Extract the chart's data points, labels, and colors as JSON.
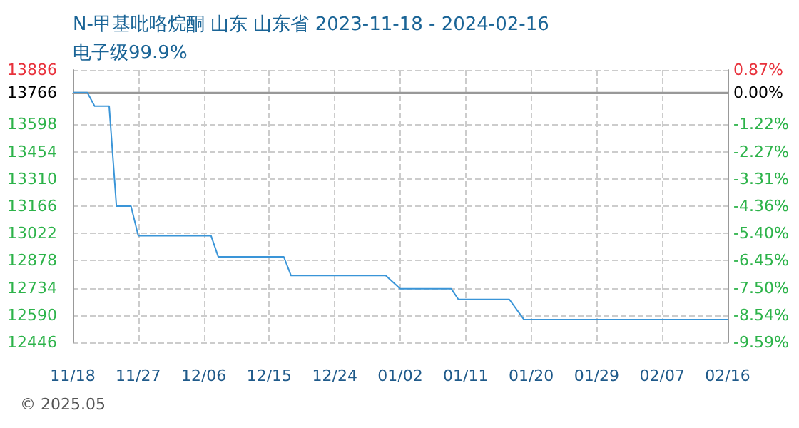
{
  "chart_data": {
    "type": "line",
    "title": "N-甲基吡咯烷酮 山东 山东省 2023-11-18 - 2024-02-16",
    "subtitle": "电子级99.9%",
    "annotations": [
      "© 2025.05"
    ],
    "x": [
      "2023-11-18",
      "2023-11-20",
      "2023-11-21",
      "2023-11-23",
      "2023-11-24",
      "2023-11-26",
      "2023-11-27",
      "2023-12-07",
      "2023-12-08",
      "2023-12-17",
      "2023-12-18",
      "2023-12-31",
      "2024-01-02",
      "2024-01-09",
      "2024-01-10",
      "2024-01-17",
      "2024-01-19",
      "2024-02-16"
    ],
    "series": [
      {
        "color": "#3a95d8",
        "values": [
          13766,
          13766,
          13695,
          13695,
          13166,
          13166,
          13010,
          13010,
          12898,
          12898,
          12799,
          12799,
          12730,
          12730,
          12673,
          12673,
          12567,
          12567
        ]
      }
    ],
    "xlim": [
      "2023-11-18",
      "2024-02-16"
    ],
    "xticks": [
      {
        "value": "2023-11-18",
        "label": "11/18"
      },
      {
        "value": "2023-11-27",
        "label": "11/27"
      },
      {
        "value": "2023-12-06",
        "label": "12/06"
      },
      {
        "value": "2023-12-15",
        "label": "12/15"
      },
      {
        "value": "2023-12-24",
        "label": "12/24"
      },
      {
        "value": "2024-01-02",
        "label": "01/02"
      },
      {
        "value": "2024-01-11",
        "label": "01/11"
      },
      {
        "value": "2024-01-20",
        "label": "01/20"
      },
      {
        "value": "2024-01-29",
        "label": "01/29"
      },
      {
        "value": "2024-02-07",
        "label": "02/07"
      },
      {
        "value": "2024-02-16",
        "label": "02/16"
      }
    ],
    "ylim": [
      12446,
      13886
    ],
    "yticks": [
      12446,
      12590,
      12734,
      12878,
      13022,
      13166,
      13310,
      13454,
      13598,
      13766,
      13886
    ],
    "y2lim": [
      -9.59,
      0.87
    ],
    "y2ticks": [
      {
        "value": -9.59,
        "label": "-9.59%"
      },
      {
        "value": -8.54,
        "label": "-8.54%"
      },
      {
        "value": -7.5,
        "label": "-7.50%"
      },
      {
        "value": -6.45,
        "label": "-6.45%"
      },
      {
        "value": -5.4,
        "label": "-5.40%"
      },
      {
        "value": -4.36,
        "label": "-4.36%"
      },
      {
        "value": -3.31,
        "label": "-3.31%"
      },
      {
        "value": -2.27,
        "label": "-2.27%"
      },
      {
        "value": -1.22,
        "label": "-1.22%"
      },
      {
        "value": 0,
        "label": "0.00%"
      },
      {
        "value": 0.87,
        "label": "0.87%"
      }
    ],
    "ref_lines": [
      {
        "axis": "y",
        "value": 13766,
        "color": "#999999",
        "line_style": "solid"
      }
    ],
    "grid": true,
    "line_style": "solid",
    "marker": "none"
  }
}
